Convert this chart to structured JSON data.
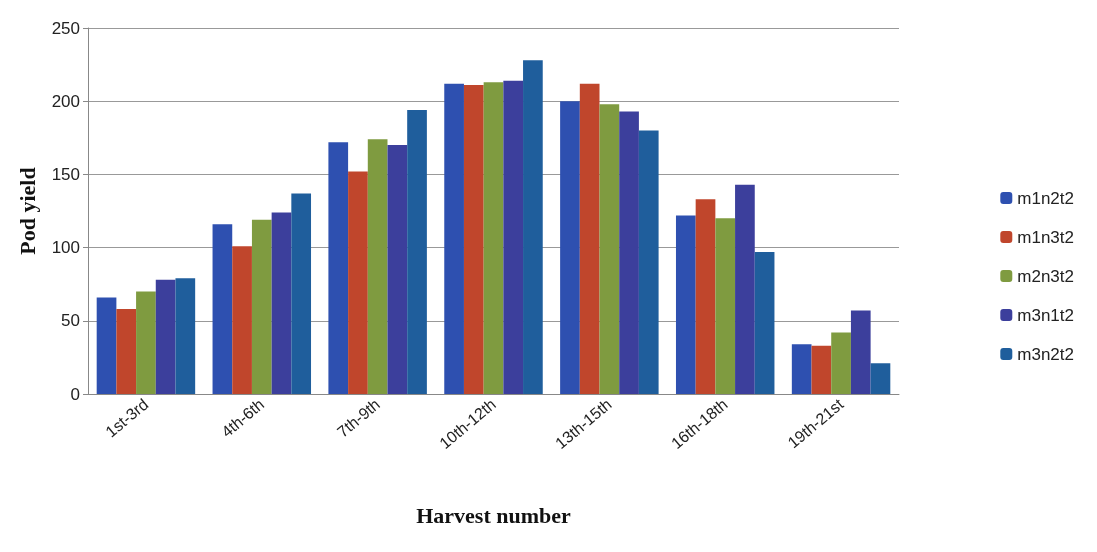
{
  "chart_data": {
    "type": "bar",
    "xlabel": "Harvest number",
    "ylabel": "Pod yield",
    "categories": [
      "1st-3rd",
      "4th-6th",
      "7th-9th",
      "10th-12th",
      "13th-15th",
      "16th-18th",
      "19th-21st"
    ],
    "series": [
      {
        "name": "m1n2t2",
        "color": "#2e50b0",
        "values": [
          66,
          116,
          172,
          212,
          200,
          122,
          34
        ]
      },
      {
        "name": "m1n3t2",
        "color": "#c0462c",
        "values": [
          58,
          101,
          152,
          211,
          212,
          133,
          33
        ]
      },
      {
        "name": "m2n3t2",
        "color": "#7f9b40",
        "values": [
          70,
          119,
          174,
          213,
          198,
          120,
          42
        ]
      },
      {
        "name": "m3n1t2",
        "color": "#3c3f9c",
        "values": [
          78,
          124,
          170,
          214,
          193,
          143,
          57
        ]
      },
      {
        "name": "m3n2t2",
        "color": "#1f5e9c",
        "values": [
          79,
          137,
          194,
          228,
          180,
          97,
          21
        ]
      }
    ],
    "ylim": [
      0,
      250
    ],
    "yticks": [
      0,
      50,
      100,
      150,
      200,
      250
    ],
    "grid": "y",
    "legend": "right"
  }
}
